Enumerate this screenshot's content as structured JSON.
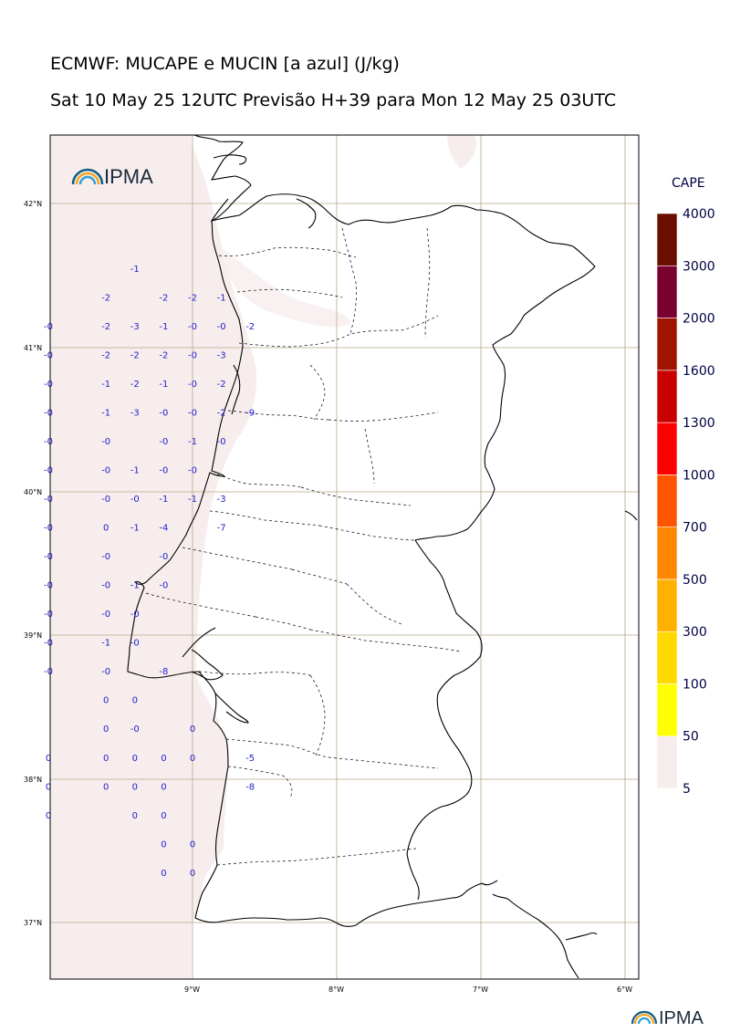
{
  "header": {
    "line1": "ECMWF: MUCAPE e MUCIN [a azul] (J/kg)",
    "line2": "Sat 10 May 25 12UTC Previsão H+39 para Mon 12 May 25 03UTC"
  },
  "logo": {
    "text": "IPMA"
  },
  "footer_logo": {
    "text": "IPMA"
  },
  "colorbar": {
    "title": "CAPE",
    "levels": [
      "5",
      "50",
      "100",
      "300",
      "500",
      "700",
      "1000",
      "1300",
      "1600",
      "2000",
      "3000",
      "4000"
    ],
    "colors": [
      "#f7eded",
      "#ffff00",
      "#ffd900",
      "#ffb000",
      "#ff8800",
      "#ff5500",
      "#ff0000",
      "#c80000",
      "#a01400",
      "#7a0030",
      "#6a0f00"
    ]
  },
  "axes": {
    "lat_labels": [
      "42°N",
      "41°N",
      "40°N",
      "39°N",
      "38°N",
      "37°N"
    ],
    "lon_labels": [
      "9°W",
      "8°W",
      "7°W",
      "6°W"
    ],
    "lon_range": [
      -10,
      -5.9
    ],
    "lat_range": [
      36.6,
      42.5
    ]
  },
  "mucin_values": [
    {
      "lon": -9.4,
      "lat": 41.55,
      "v": "-1"
    },
    {
      "lon": -9.6,
      "lat": 41.35,
      "v": "-2"
    },
    {
      "lon": -9.2,
      "lat": 41.35,
      "v": "-2"
    },
    {
      "lon": -9.0,
      "lat": 41.35,
      "v": "-2"
    },
    {
      "lon": -8.8,
      "lat": 41.35,
      "v": "-1"
    },
    {
      "lon": -10.0,
      "lat": 41.15,
      "v": "-0"
    },
    {
      "lon": -9.6,
      "lat": 41.15,
      "v": "-2"
    },
    {
      "lon": -9.4,
      "lat": 41.15,
      "v": "-3"
    },
    {
      "lon": -9.2,
      "lat": 41.15,
      "v": "-1"
    },
    {
      "lon": -9.0,
      "lat": 41.15,
      "v": "-0"
    },
    {
      "lon": -8.8,
      "lat": 41.15,
      "v": "-0"
    },
    {
      "lon": -8.6,
      "lat": 41.15,
      "v": "-2"
    },
    {
      "lon": -10.0,
      "lat": 40.95,
      "v": "-0"
    },
    {
      "lon": -9.6,
      "lat": 40.95,
      "v": "-2"
    },
    {
      "lon": -9.4,
      "lat": 40.95,
      "v": "-2"
    },
    {
      "lon": -9.2,
      "lat": 40.95,
      "v": "-2"
    },
    {
      "lon": -9.0,
      "lat": 40.95,
      "v": "-0"
    },
    {
      "lon": -8.8,
      "lat": 40.95,
      "v": "-3"
    },
    {
      "lon": -10.0,
      "lat": 40.75,
      "v": "-0"
    },
    {
      "lon": -9.6,
      "lat": 40.75,
      "v": "-1"
    },
    {
      "lon": -9.4,
      "lat": 40.75,
      "v": "-2"
    },
    {
      "lon": -9.2,
      "lat": 40.75,
      "v": "-1"
    },
    {
      "lon": -9.0,
      "lat": 40.75,
      "v": "-0"
    },
    {
      "lon": -8.8,
      "lat": 40.75,
      "v": "-2"
    },
    {
      "lon": -10.0,
      "lat": 40.55,
      "v": "-0"
    },
    {
      "lon": -9.6,
      "lat": 40.55,
      "v": "-1"
    },
    {
      "lon": -9.4,
      "lat": 40.55,
      "v": "-3"
    },
    {
      "lon": -9.2,
      "lat": 40.55,
      "v": "-0"
    },
    {
      "lon": -9.0,
      "lat": 40.55,
      "v": "-0"
    },
    {
      "lon": -8.8,
      "lat": 40.55,
      "v": "-2"
    },
    {
      "lon": -8.6,
      "lat": 40.55,
      "v": "-9"
    },
    {
      "lon": -10.0,
      "lat": 40.35,
      "v": "-0"
    },
    {
      "lon": -9.6,
      "lat": 40.35,
      "v": "-0"
    },
    {
      "lon": -9.2,
      "lat": 40.35,
      "v": "-0"
    },
    {
      "lon": -9.0,
      "lat": 40.35,
      "v": "-1"
    },
    {
      "lon": -8.8,
      "lat": 40.35,
      "v": "-0"
    },
    {
      "lon": -10.0,
      "lat": 40.15,
      "v": "-0"
    },
    {
      "lon": -9.6,
      "lat": 40.15,
      "v": "-0"
    },
    {
      "lon": -9.4,
      "lat": 40.15,
      "v": "-1"
    },
    {
      "lon": -9.2,
      "lat": 40.15,
      "v": "-0"
    },
    {
      "lon": -9.0,
      "lat": 40.15,
      "v": "-0"
    },
    {
      "lon": -10.0,
      "lat": 39.95,
      "v": "-0"
    },
    {
      "lon": -9.6,
      "lat": 39.95,
      "v": "-0"
    },
    {
      "lon": -9.4,
      "lat": 39.95,
      "v": "-0"
    },
    {
      "lon": -9.2,
      "lat": 39.95,
      "v": "-1"
    },
    {
      "lon": -9.0,
      "lat": 39.95,
      "v": "-1"
    },
    {
      "lon": -8.8,
      "lat": 39.95,
      "v": "-3"
    },
    {
      "lon": -10.0,
      "lat": 39.75,
      "v": "-0"
    },
    {
      "lon": -9.6,
      "lat": 39.75,
      "v": "0"
    },
    {
      "lon": -9.4,
      "lat": 39.75,
      "v": "-1"
    },
    {
      "lon": -9.2,
      "lat": 39.75,
      "v": "-4"
    },
    {
      "lon": -8.8,
      "lat": 39.75,
      "v": "-7"
    },
    {
      "lon": -10.0,
      "lat": 39.55,
      "v": "-0"
    },
    {
      "lon": -9.6,
      "lat": 39.55,
      "v": "-0"
    },
    {
      "lon": -9.2,
      "lat": 39.55,
      "v": "-0"
    },
    {
      "lon": -10.0,
      "lat": 39.35,
      "v": "-0"
    },
    {
      "lon": -9.6,
      "lat": 39.35,
      "v": "-0"
    },
    {
      "lon": -9.4,
      "lat": 39.35,
      "v": "-1"
    },
    {
      "lon": -9.2,
      "lat": 39.35,
      "v": "-0"
    },
    {
      "lon": -10.0,
      "lat": 39.15,
      "v": "-0"
    },
    {
      "lon": -9.6,
      "lat": 39.15,
      "v": "-0"
    },
    {
      "lon": -9.4,
      "lat": 39.15,
      "v": "-0"
    },
    {
      "lon": -10.0,
      "lat": 38.95,
      "v": "-0"
    },
    {
      "lon": -9.6,
      "lat": 38.95,
      "v": "-1"
    },
    {
      "lon": -9.4,
      "lat": 38.95,
      "v": "-0"
    },
    {
      "lon": -10.0,
      "lat": 38.75,
      "v": "-0"
    },
    {
      "lon": -9.6,
      "lat": 38.75,
      "v": "-0"
    },
    {
      "lon": -9.2,
      "lat": 38.75,
      "v": "-8"
    },
    {
      "lon": -9.6,
      "lat": 38.55,
      "v": "0"
    },
    {
      "lon": -9.4,
      "lat": 38.55,
      "v": "0"
    },
    {
      "lon": -9.6,
      "lat": 38.35,
      "v": "0"
    },
    {
      "lon": -9.4,
      "lat": 38.35,
      "v": "-0"
    },
    {
      "lon": -9.0,
      "lat": 38.35,
      "v": "0"
    },
    {
      "lon": -10.0,
      "lat": 38.15,
      "v": "0"
    },
    {
      "lon": -9.6,
      "lat": 38.15,
      "v": "0"
    },
    {
      "lon": -9.4,
      "lat": 38.15,
      "v": "0"
    },
    {
      "lon": -9.2,
      "lat": 38.15,
      "v": "0"
    },
    {
      "lon": -9.0,
      "lat": 38.15,
      "v": "0"
    },
    {
      "lon": -8.6,
      "lat": 38.15,
      "v": "-5"
    },
    {
      "lon": -10.0,
      "lat": 37.95,
      "v": "0"
    },
    {
      "lon": -9.6,
      "lat": 37.95,
      "v": "0"
    },
    {
      "lon": -9.4,
      "lat": 37.95,
      "v": "0"
    },
    {
      "lon": -9.2,
      "lat": 37.95,
      "v": "0"
    },
    {
      "lon": -8.6,
      "lat": 37.95,
      "v": "-8"
    },
    {
      "lon": -10.0,
      "lat": 37.75,
      "v": "0"
    },
    {
      "lon": -9.4,
      "lat": 37.75,
      "v": "0"
    },
    {
      "lon": -9.2,
      "lat": 37.75,
      "v": "0"
    },
    {
      "lon": -9.2,
      "lat": 37.55,
      "v": "0"
    },
    {
      "lon": -9.0,
      "lat": 37.55,
      "v": "0"
    },
    {
      "lon": -9.2,
      "lat": 37.35,
      "v": "0"
    },
    {
      "lon": -9.0,
      "lat": 37.35,
      "v": "0"
    }
  ]
}
